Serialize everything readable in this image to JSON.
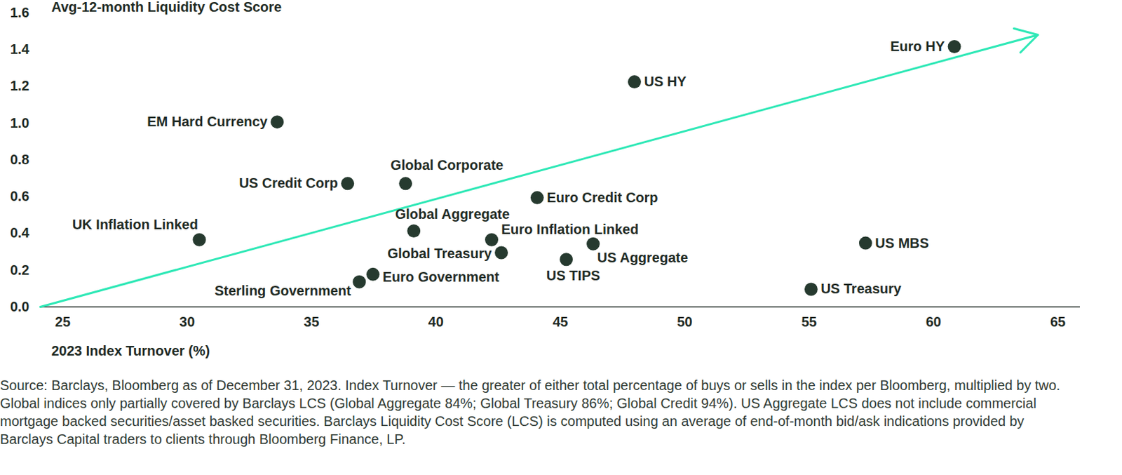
{
  "chart_data": {
    "type": "scatter",
    "y_label": "Avg-12-month Liquidity Cost Score",
    "x_label": "2023 Index Turnover (%)",
    "caption": "Source: Barclays, Bloomberg as of December 31, 2023. Index Turnover — the greater of either total percentage of buys or sells in the index per Bloomberg, multiplied by two. Global indices only partially covered by Barclays LCS (Global Aggregate 84%; Global Treasury 86%; Global Credit 94%). US Aggregate LCS does not include commercial mortgage backed securities/asset basked securities. Barclays Liquidity Cost Score (LCS) is computed using an average of end-of-month bid/ask indications provided by Barclays Capital traders to clients through Bloomberg Finance, LP.",
    "names": [
      "Euro HY",
      "US HY",
      "EM Hard Currency",
      "US Credit Corp",
      "Global Corporate",
      "Euro Credit Corp",
      "UK Inflation Linked",
      "Global Aggregate",
      "Euro Inflation Linked",
      "Global Treasury",
      "US Aggregate",
      "US TIPS",
      "Sterling Government",
      "Euro Government",
      "US Treasury",
      "US MBS"
    ],
    "x": [
      60.84,
      47.98,
      33.62,
      36.45,
      38.78,
      44.07,
      30.49,
      39.11,
      42.24,
      42.63,
      46.32,
      45.24,
      36.92,
      37.47,
      55.08,
      57.27
    ],
    "y": [
      1.416,
      1.224,
      1.006,
      0.671,
      0.671,
      0.594,
      0.365,
      0.413,
      0.365,
      0.295,
      0.343,
      0.258,
      0.136,
      0.177,
      0.096,
      0.347
    ],
    "color": "#263a2f",
    "marker": "circle",
    "xlim": [
      24.1,
      65.9
    ],
    "xticks": [
      25,
      30,
      35,
      40,
      45,
      50,
      55,
      60,
      65
    ],
    "ylim": [
      0,
      1.6
    ],
    "yticks": [
      {
        "value": 0,
        "label": "0.0"
      },
      0.2,
      0.4,
      0.6,
      0.8,
      {
        "value": 1,
        "label": "1.0"
      },
      1.2,
      1.4,
      1.6
    ],
    "grid": false,
    "trend_line": {
      "x": [
        24.1,
        64.2
      ],
      "y": [
        0,
        1.48
      ],
      "color": "#2ee8b6"
    }
  }
}
